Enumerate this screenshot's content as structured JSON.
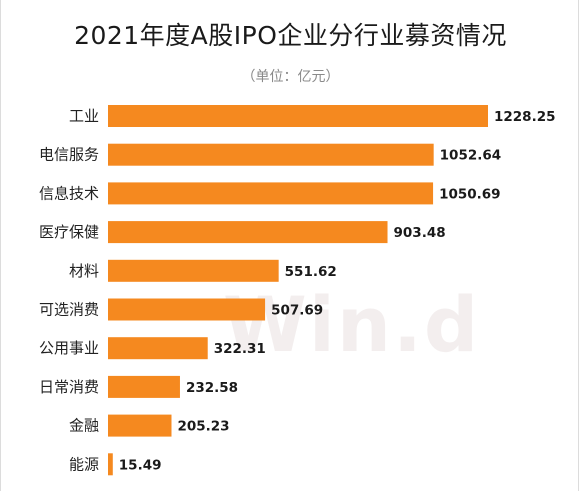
{
  "chart_data": {
    "type": "bar",
    "orientation": "horizontal",
    "title": "2021年度A股IPO企业分行业募资情况",
    "subtitle": "（单位：亿元）",
    "categories": [
      "工业",
      "电信服务",
      "信息技术",
      "医疗保健",
      "材料",
      "可选消费",
      "公用事业",
      "日常消费",
      "金融",
      "能源"
    ],
    "values": [
      1228.25,
      1052.64,
      1050.69,
      903.48,
      551.62,
      507.69,
      322.31,
      232.58,
      205.23,
      15.49
    ],
    "value_labels": [
      "1228.25",
      "1052.64",
      "1050.69",
      "903.48",
      "551.62",
      "507.69",
      "322.31",
      "232.58",
      "205.23",
      "15.49"
    ],
    "xlabel": "",
    "ylabel": "",
    "grid": false,
    "bar_color": "#f5891f",
    "watermark": "Win.d"
  }
}
